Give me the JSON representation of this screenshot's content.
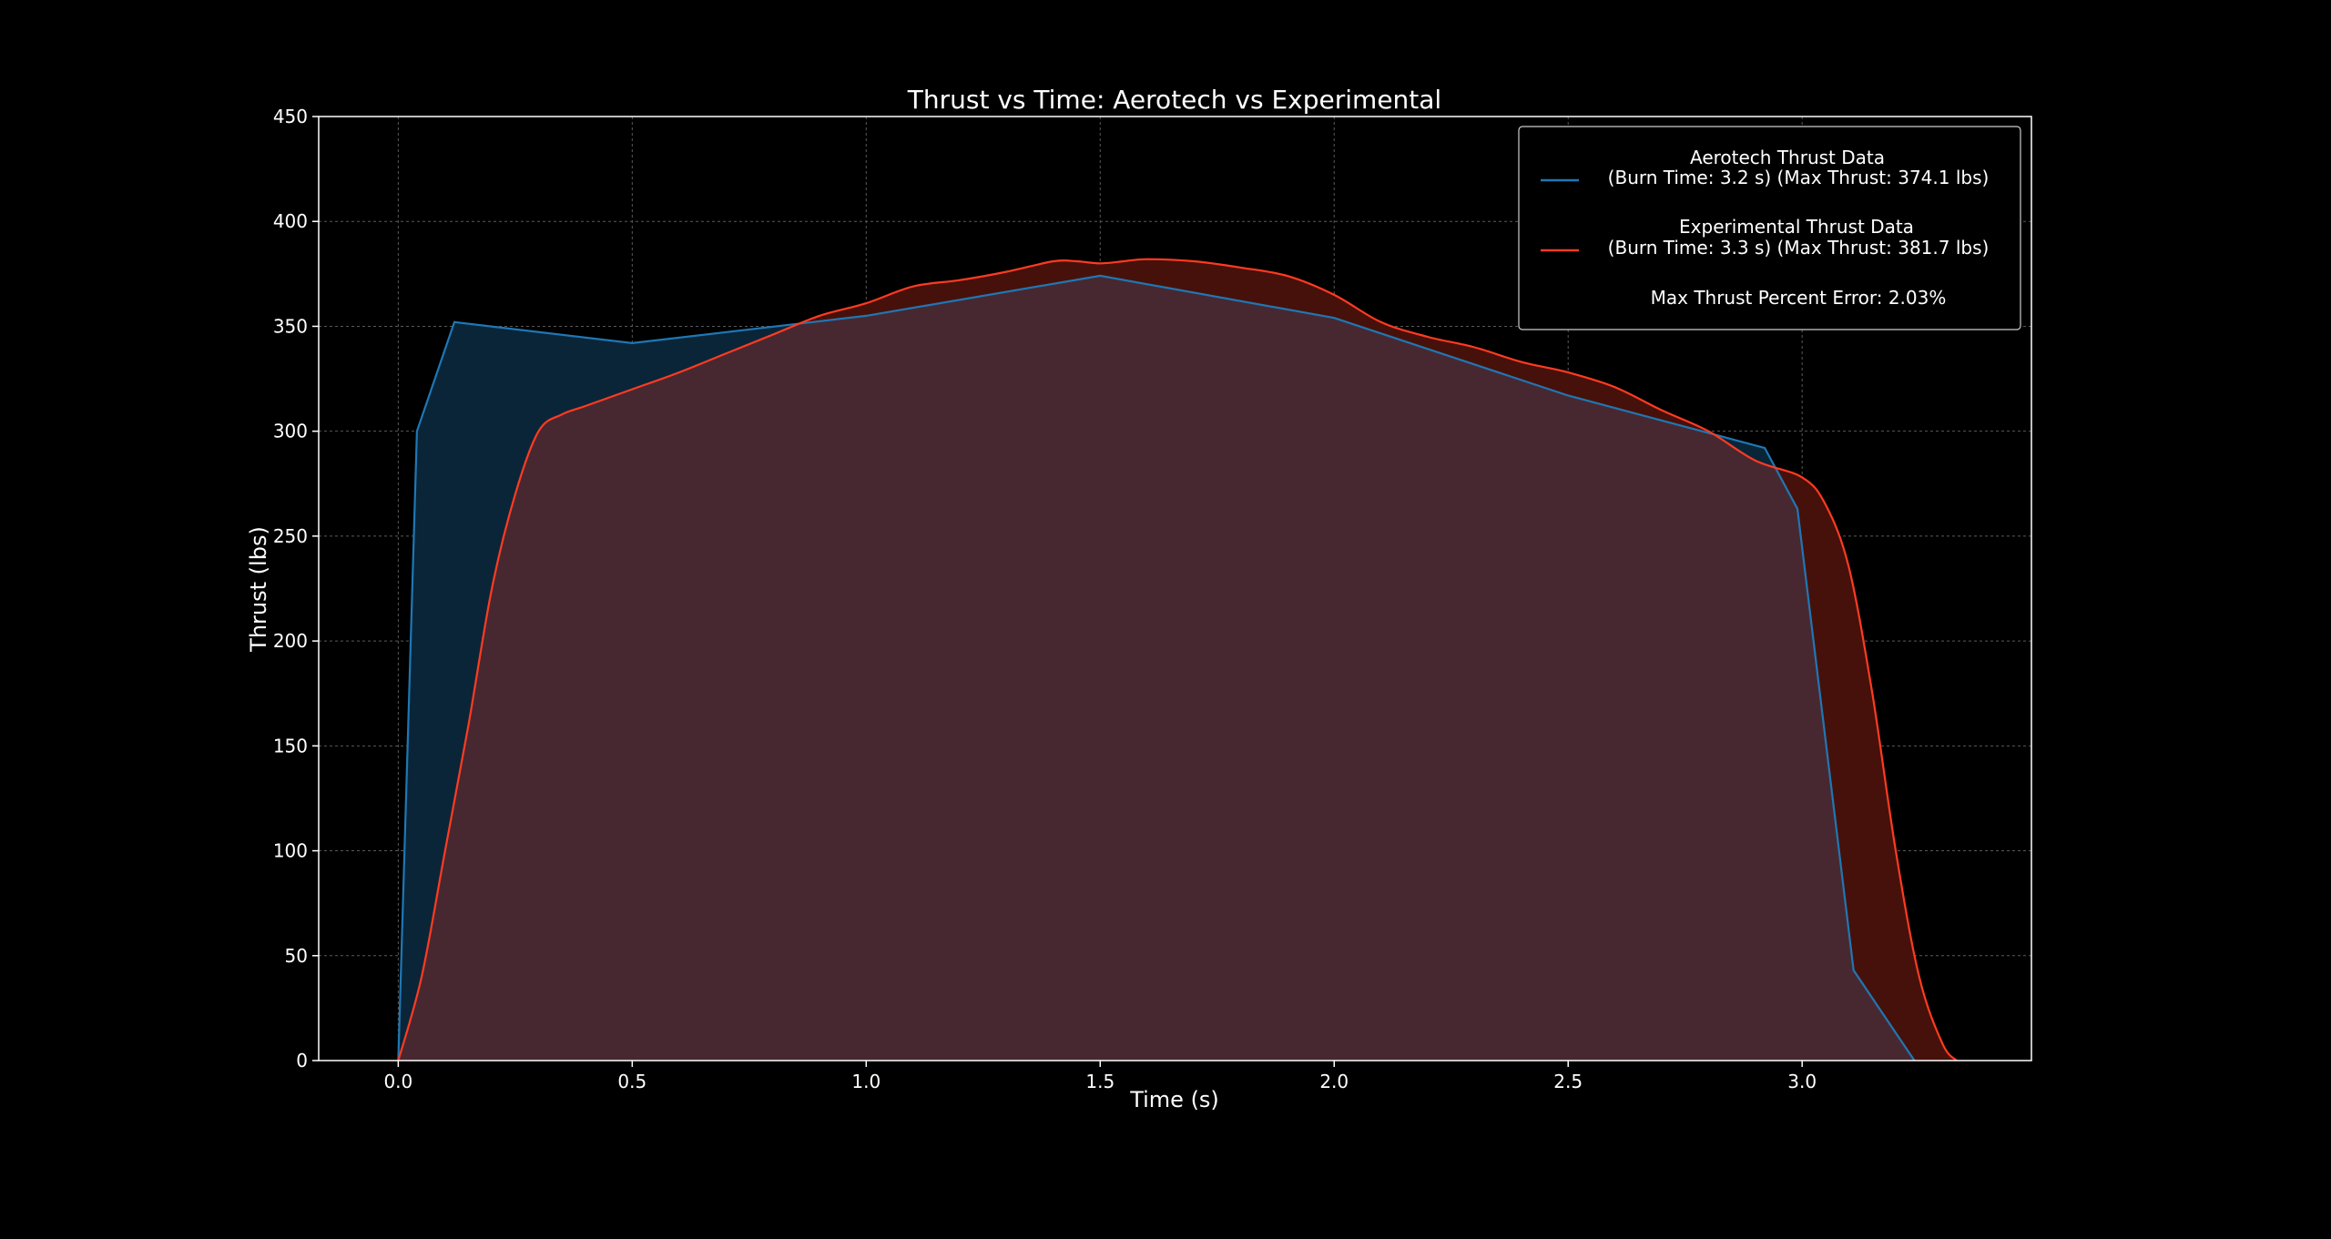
{
  "chart_data": {
    "type": "area",
    "title": "Thrust vs Time: Aerotech vs Experimental",
    "xlabel": "Time (s)",
    "ylabel": "Thrust (lbs)",
    "xlim": [
      -0.17,
      3.49
    ],
    "ylim": [
      0,
      450
    ],
    "xticks": [
      "0.0",
      "0.5",
      "1.0",
      "1.5",
      "2.0",
      "2.5",
      "3.0"
    ],
    "yticks": [
      "0",
      "50",
      "100",
      "150",
      "200",
      "250",
      "300",
      "350",
      "400",
      "450"
    ],
    "grid": true,
    "legend_position": "top-right",
    "series": [
      {
        "name": "Aerotech Thrust Data",
        "legend_detail": "(Burn Time: 3.2 s) (Max Thrust: 374.1 lbs)",
        "color": "#1f77b4",
        "fill": "#0a2538",
        "x": [
          0.0,
          0.04,
          0.12,
          0.5,
          1.0,
          1.5,
          2.0,
          2.5,
          2.92,
          2.99,
          3.11,
          3.24
        ],
        "y": [
          0,
          300,
          352,
          342,
          355,
          374.1,
          354,
          317,
          292,
          263,
          43,
          0
        ]
      },
      {
        "name": "Experimental Thrust Data",
        "legend_detail": "(Burn Time: 3.3 s) (Max Thrust: 381.7 lbs)",
        "color": "#ff3b21",
        "fill": "#46110b",
        "x": [
          0.0,
          0.05,
          0.1,
          0.15,
          0.2,
          0.25,
          0.3,
          0.35,
          0.4,
          0.5,
          0.6,
          0.7,
          0.8,
          0.9,
          1.0,
          1.1,
          1.2,
          1.3,
          1.4,
          1.45,
          1.5,
          1.55,
          1.6,
          1.7,
          1.8,
          1.9,
          2.0,
          2.1,
          2.2,
          2.3,
          2.4,
          2.5,
          2.6,
          2.7,
          2.8,
          2.9,
          3.0,
          3.05,
          3.1,
          3.15,
          3.2,
          3.25,
          3.3,
          3.33
        ],
        "y": [
          0,
          40,
          100,
          160,
          225,
          270,
          300,
          308,
          312,
          320,
          328,
          337,
          346,
          355,
          361,
          369,
          372,
          376,
          381,
          381,
          380,
          381,
          382,
          381,
          378,
          374,
          365,
          352,
          345,
          340,
          333,
          328,
          321,
          310,
          300,
          286,
          278,
          265,
          235,
          175,
          100,
          40,
          8,
          0
        ]
      }
    ],
    "overlap_fill": "#482830",
    "annotation": "Max Thrust Percent Error: 2.03%"
  }
}
